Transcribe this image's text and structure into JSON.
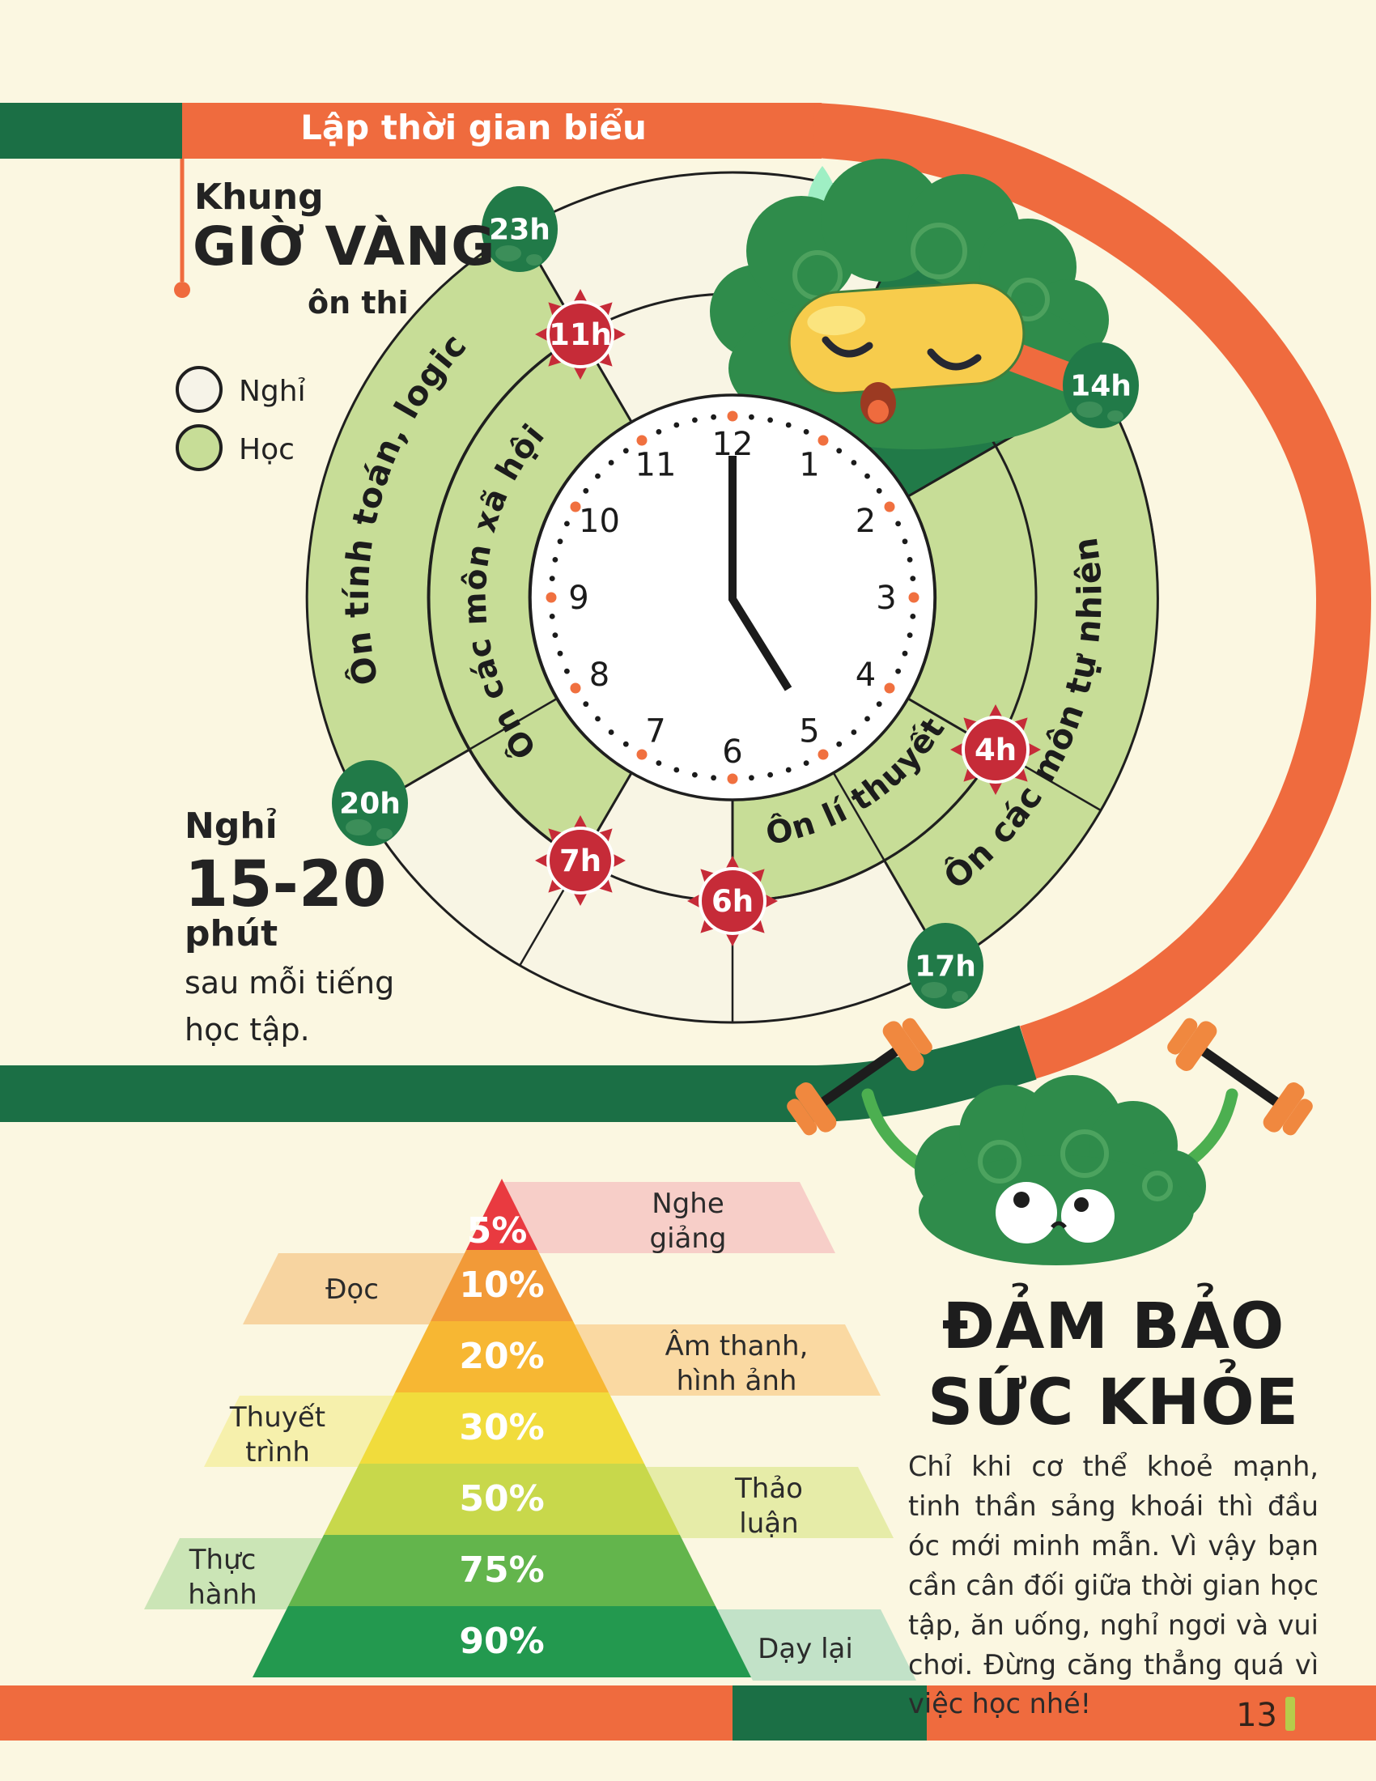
{
  "header": {
    "title": "Lập thời gian biểu"
  },
  "golden_hours": {
    "kicker": "Khung",
    "title": "GIỜ VÀNG",
    "subtitle": "ôn thi"
  },
  "legend": {
    "rest_label": "Nghỉ",
    "study_label": "Học"
  },
  "clock": {
    "numbers": [
      "12",
      "1",
      "2",
      "3",
      "4",
      "5",
      "6",
      "7",
      "8",
      "9",
      "10",
      "11"
    ]
  },
  "schedule": {
    "segments": [
      {
        "label": "Ôn tính toán, logic",
        "ring": "outer",
        "from": "20h",
        "to": "23h"
      },
      {
        "label": "Ôn các môn xã hội",
        "ring": "inner",
        "from": "7h",
        "to": "11h"
      },
      {
        "label": "Ôn lí thuyết",
        "ring": "inner",
        "from": "6h",
        "to": "4h"
      },
      {
        "label": "Ôn các môn tự nhiên",
        "ring": "outer",
        "from": "14h",
        "to": "17h"
      }
    ],
    "sun_markers": [
      "11h",
      "7h",
      "6h",
      "4h"
    ],
    "hour_badges": [
      "23h",
      "20h",
      "14h",
      "17h"
    ]
  },
  "rest_note": {
    "lead": "Nghỉ",
    "minutes": "15-20",
    "unit": "phút",
    "tail1": "sau mỗi tiếng",
    "tail2": "học tập."
  },
  "pyramid": {
    "type": "pyramid",
    "levels": [
      {
        "pct": "5%",
        "label": "Nghe giảng",
        "side": "right"
      },
      {
        "pct": "10%",
        "label": "Đọc",
        "side": "left"
      },
      {
        "pct": "20%",
        "label": "Âm thanh, hình ảnh",
        "side": "right"
      },
      {
        "pct": "30%",
        "label": "Thuyết trình",
        "side": "left"
      },
      {
        "pct": "50%",
        "label": "Thảo luận",
        "side": "right"
      },
      {
        "pct": "75%",
        "label": "Thực hành",
        "side": "left"
      },
      {
        "pct": "90%",
        "label": "Dạy lại",
        "side": "right"
      }
    ]
  },
  "health": {
    "title_line1": "ĐẢM BẢO",
    "title_line2": "SỨC KHỎE",
    "body": "Chỉ khi cơ thể khoẻ mạnh, tinh thần sảng khoái thì đầu óc mới minh mẫn. Vì vậy bạn cần cân đối giữa thời gian học tập, ăn uống, nghỉ ngơi và vui chơi. Đừng căng thẳng quá vì việc học nhé!"
  },
  "footer": {
    "page_number": "13"
  },
  "colors": {
    "orange": "#EF6B3E",
    "dark_green": "#1B6F45",
    "badge_green": "#217A48",
    "ring_green": "#C7DD97",
    "ring_rest": "#F8F5E4",
    "sun_red": "#C62B38",
    "pyr_5": "#E93A40",
    "pyr_10": "#F29A38",
    "pyr_20": "#F7B733",
    "pyr_30": "#F1DC3C",
    "pyr_50": "#C8D84B",
    "pyr_75": "#63B54C",
    "pyr_90": "#23994F",
    "tick_green": "#B6CC4B"
  }
}
